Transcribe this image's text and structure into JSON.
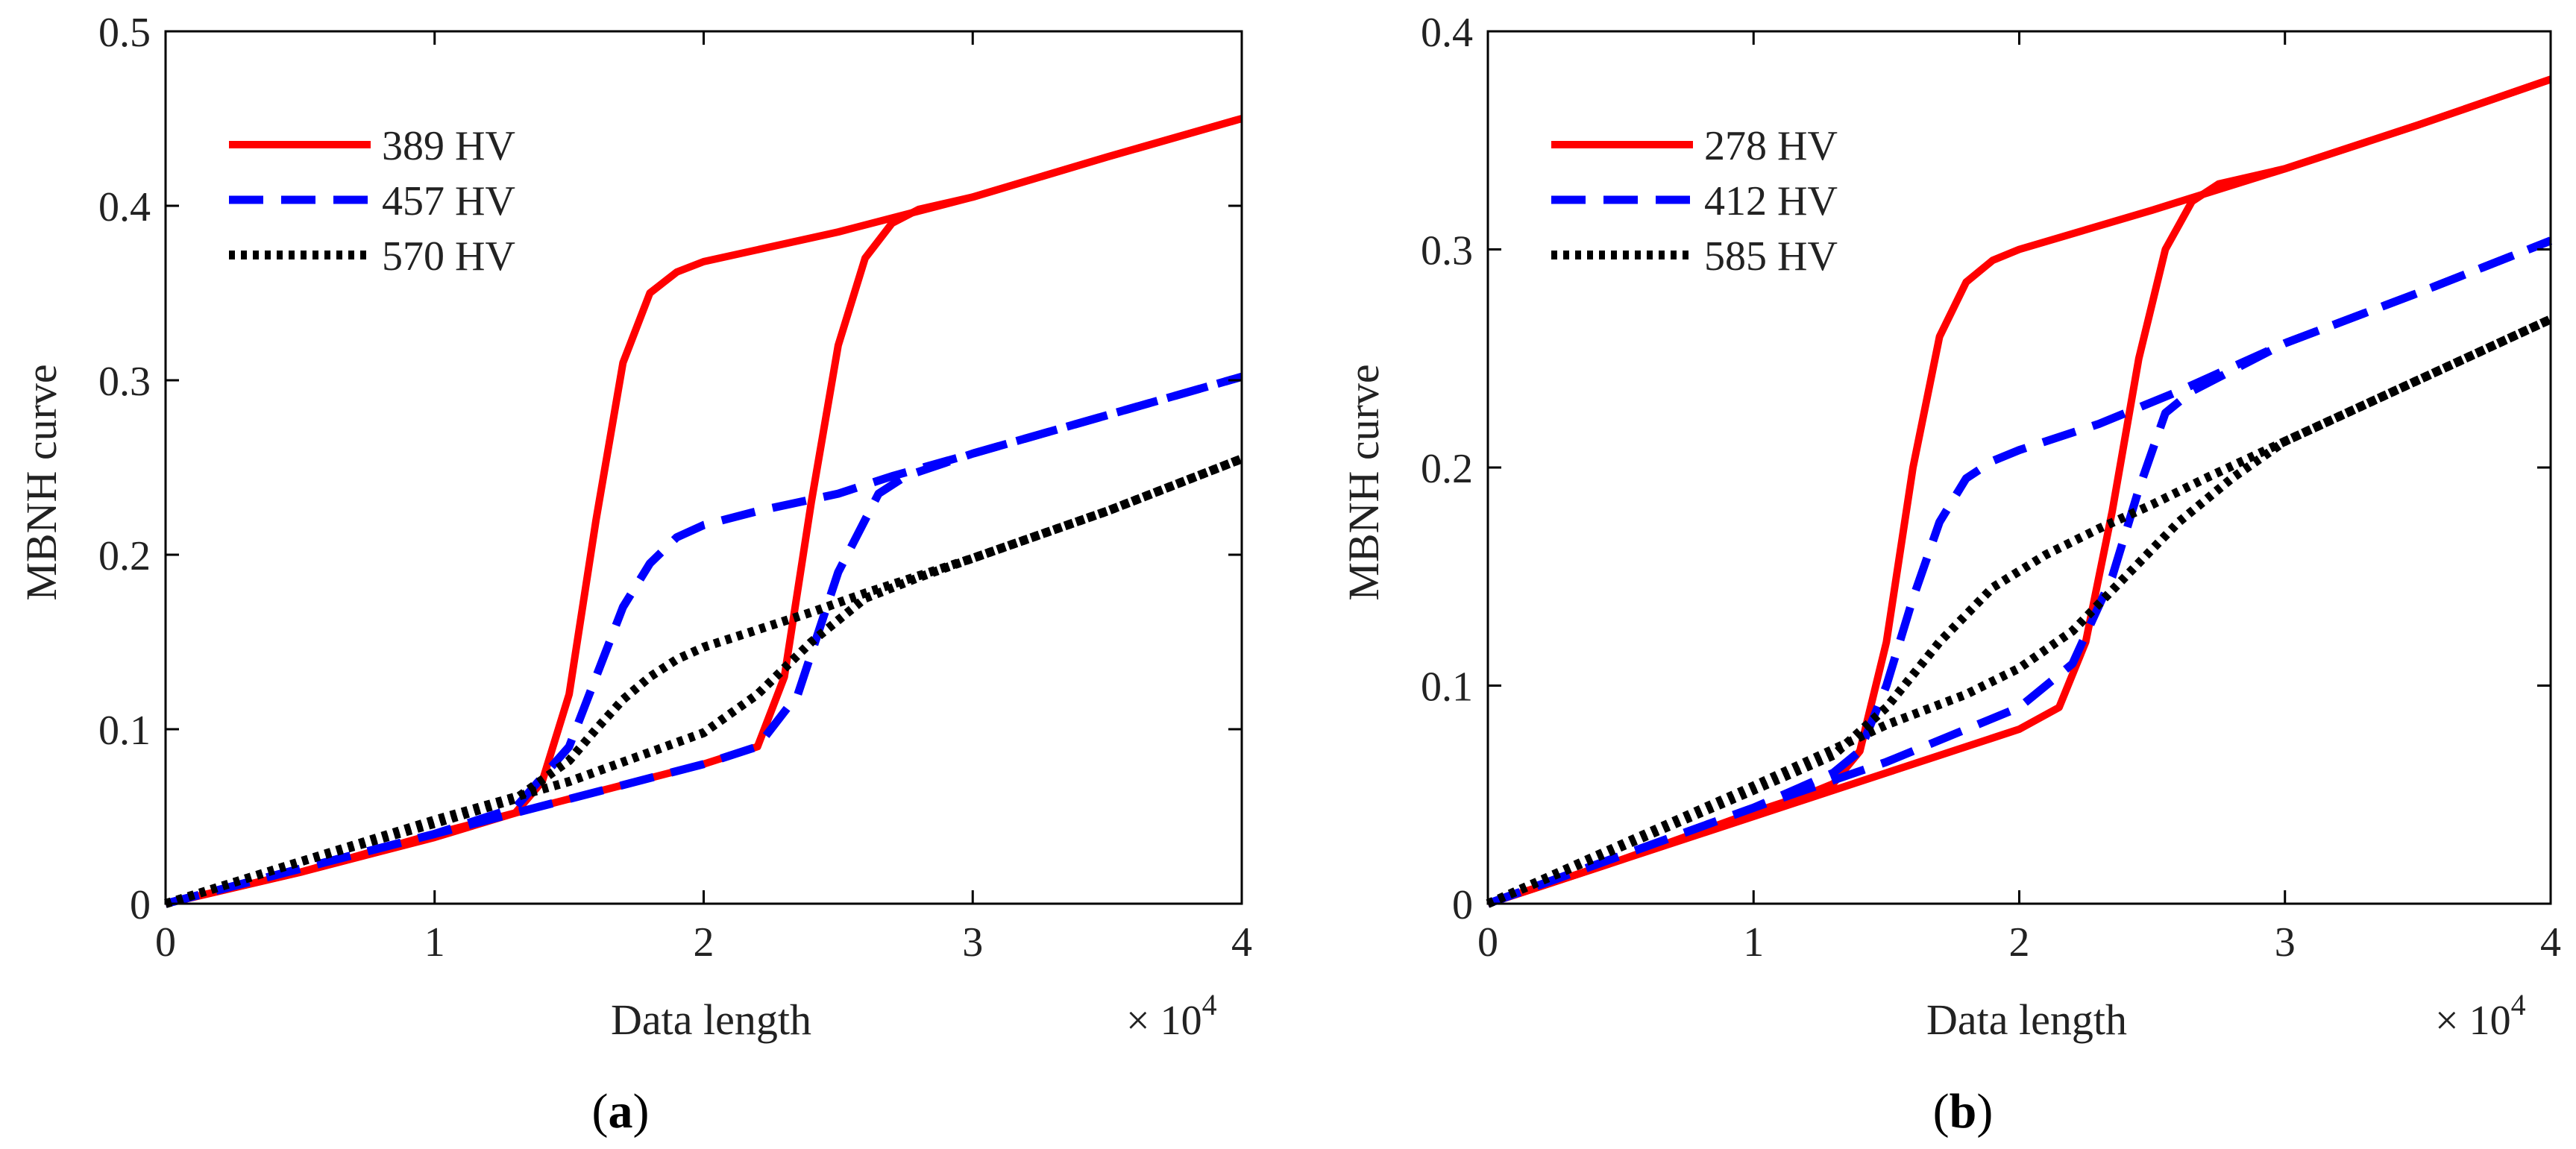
{
  "chart_data": [
    {
      "type": "line",
      "panel_label": "(a)",
      "panel_letter": "a",
      "xlabel": "Data length",
      "ylabel": "MBNH curve",
      "x_multiplier": "× 10",
      "x_multiplier_exp": "4",
      "xlim": [
        0,
        4
      ],
      "ylim": [
        0,
        0.5
      ],
      "xticks": [
        0,
        1,
        2,
        3,
        4
      ],
      "yticks": [
        0,
        0.1,
        0.2,
        0.3,
        0.4,
        0.5
      ],
      "legend_position": "top-left",
      "grid": false,
      "series": [
        {
          "name": "389 HV",
          "color": "#ff0000",
          "dash": "solid",
          "branches": [
            {
              "x": [
                0,
                0.5,
                1.0,
                1.3,
                1.4,
                1.5,
                1.6,
                1.7,
                1.8,
                1.9,
                2.0,
                2.5,
                3.0,
                3.5,
                4.0
              ],
              "y": [
                0,
                0.018,
                0.038,
                0.052,
                0.07,
                0.12,
                0.22,
                0.31,
                0.35,
                0.362,
                0.368,
                0.385,
                0.405,
                0.428,
                0.45
              ]
            },
            {
              "x": [
                0,
                0.5,
                1.0,
                1.5,
                2.0,
                2.2,
                2.3,
                2.4,
                2.5,
                2.6,
                2.7,
                2.8,
                3.0,
                3.5,
                4.0
              ],
              "y": [
                0,
                0.018,
                0.04,
                0.06,
                0.08,
                0.09,
                0.13,
                0.23,
                0.32,
                0.37,
                0.39,
                0.398,
                0.405,
                0.428,
                0.45
              ]
            }
          ]
        },
        {
          "name": "457 HV",
          "color": "#0000ff",
          "dash": "dashed",
          "branches": [
            {
              "x": [
                0,
                0.5,
                1.0,
                1.3,
                1.5,
                1.6,
                1.7,
                1.8,
                1.9,
                2.0,
                2.2,
                2.5,
                2.7,
                3.0,
                3.5,
                4.0
              ],
              "y": [
                0,
                0.02,
                0.04,
                0.055,
                0.09,
                0.13,
                0.17,
                0.195,
                0.21,
                0.217,
                0.225,
                0.235,
                0.245,
                0.258,
                0.28,
                0.302
              ]
            },
            {
              "x": [
                0,
                0.5,
                1.0,
                1.5,
                2.0,
                2.2,
                2.35,
                2.5,
                2.65,
                2.75,
                3.0,
                3.5,
                4.0
              ],
              "y": [
                0,
                0.02,
                0.04,
                0.06,
                0.08,
                0.09,
                0.12,
                0.19,
                0.235,
                0.245,
                0.258,
                0.28,
                0.302
              ]
            }
          ]
        },
        {
          "name": "570 HV",
          "color": "#000000",
          "dash": "dotted",
          "branches": [
            {
              "x": [
                0,
                0.5,
                1.0,
                1.3,
                1.5,
                1.6,
                1.7,
                1.8,
                1.9,
                2.0,
                2.2,
                2.4,
                2.6,
                3.0,
                3.5,
                4.0
              ],
              "y": [
                0,
                0.024,
                0.046,
                0.06,
                0.082,
                0.1,
                0.117,
                0.13,
                0.14,
                0.147,
                0.157,
                0.167,
                0.178,
                0.198,
                0.225,
                0.255
              ]
            },
            {
              "x": [
                0,
                0.5,
                1.0,
                1.5,
                2.0,
                2.2,
                2.4,
                2.6,
                2.8,
                3.0,
                3.5,
                4.0
              ],
              "y": [
                0,
                0.024,
                0.048,
                0.07,
                0.098,
                0.12,
                0.15,
                0.175,
                0.187,
                0.198,
                0.225,
                0.255
              ]
            }
          ]
        }
      ]
    },
    {
      "type": "line",
      "panel_label": "(b)",
      "panel_letter": "b",
      "xlabel": "Data length",
      "ylabel": "MBNH curve",
      "x_multiplier": "× 10",
      "x_multiplier_exp": "4",
      "xlim": [
        0,
        4
      ],
      "ylim": [
        0,
        0.4
      ],
      "xticks": [
        0,
        1,
        2,
        3,
        4
      ],
      "yticks": [
        0,
        0.1,
        0.2,
        0.3,
        0.4
      ],
      "legend_position": "top-left",
      "grid": false,
      "series": [
        {
          "name": "278 HV",
          "color": "#ff0000",
          "dash": "solid",
          "branches": [
            {
              "x": [
                0,
                0.5,
                1.0,
                1.2,
                1.3,
                1.4,
                1.5,
                1.6,
                1.7,
                1.8,
                1.9,
                2.0,
                2.5,
                3.0,
                3.5,
                4.0
              ],
              "y": [
                0,
                0.02,
                0.042,
                0.05,
                0.055,
                0.07,
                0.12,
                0.2,
                0.26,
                0.285,
                0.295,
                0.3,
                0.318,
                0.337,
                0.357,
                0.378
              ]
            },
            {
              "x": [
                0,
                0.5,
                1.0,
                1.5,
                2.0,
                2.15,
                2.25,
                2.35,
                2.45,
                2.55,
                2.65,
                2.75,
                3.0,
                3.5,
                4.0
              ],
              "y": [
                0,
                0.02,
                0.04,
                0.06,
                0.08,
                0.09,
                0.12,
                0.18,
                0.25,
                0.3,
                0.322,
                0.33,
                0.337,
                0.357,
                0.378
              ]
            }
          ]
        },
        {
          "name": "412 HV",
          "color": "#0000ff",
          "dash": "dashed",
          "branches": [
            {
              "x": [
                0,
                0.5,
                1.0,
                1.3,
                1.4,
                1.5,
                1.6,
                1.7,
                1.8,
                1.9,
                2.0,
                2.3,
                2.6,
                3.0,
                3.5,
                4.0
              ],
              "y": [
                0,
                0.022,
                0.044,
                0.06,
                0.07,
                0.1,
                0.14,
                0.175,
                0.195,
                0.203,
                0.208,
                0.22,
                0.235,
                0.257,
                0.28,
                0.304
              ]
            },
            {
              "x": [
                0,
                0.5,
                1.0,
                1.5,
                2.0,
                2.2,
                2.35,
                2.45,
                2.55,
                2.65,
                3.0,
                3.5,
                4.0
              ],
              "y": [
                0,
                0.022,
                0.044,
                0.065,
                0.09,
                0.11,
                0.15,
                0.19,
                0.225,
                0.235,
                0.257,
                0.28,
                0.304
              ]
            }
          ]
        },
        {
          "name": "585 HV",
          "color": "#000000",
          "dash": "dotted",
          "branches": [
            {
              "x": [
                0,
                0.5,
                1.0,
                1.3,
                1.5,
                1.7,
                1.9,
                2.1,
                2.3,
                2.5,
                2.7,
                3.0,
                3.5,
                4.0
              ],
              "y": [
                0,
                0.026,
                0.052,
                0.068,
                0.09,
                0.12,
                0.145,
                0.16,
                0.172,
                0.183,
                0.195,
                0.212,
                0.24,
                0.268
              ]
            },
            {
              "x": [
                0,
                0.5,
                1.0,
                1.5,
                1.8,
                2.0,
                2.2,
                2.4,
                2.6,
                2.8,
                3.0,
                3.5,
                4.0
              ],
              "y": [
                0,
                0.027,
                0.054,
                0.082,
                0.096,
                0.108,
                0.125,
                0.15,
                0.175,
                0.195,
                0.212,
                0.24,
                0.268
              ]
            }
          ]
        }
      ]
    }
  ]
}
